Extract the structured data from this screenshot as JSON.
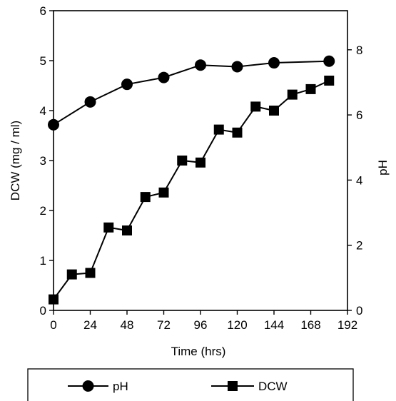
{
  "chart_data": {
    "type": "line",
    "xlabel": "Time (hrs)",
    "ylabel": "DCW (mg / ml)",
    "y2label": "pH",
    "xlim": [
      0,
      192
    ],
    "ylim": [
      0,
      6
    ],
    "y2lim": [
      0,
      9.2
    ],
    "x_ticks": [
      "0",
      "24",
      "48",
      "72",
      "96",
      "120",
      "144",
      "168",
      "192"
    ],
    "y_ticks": [
      "0",
      "1",
      "2",
      "3",
      "4",
      "5",
      "6"
    ],
    "y2_ticks": [
      "0",
      "2",
      "4",
      "6",
      "8"
    ],
    "grid": false,
    "legend_position": "bottom",
    "series": [
      {
        "name": "pH",
        "axis": "right",
        "marker": "circle",
        "color": "#000000",
        "x": [
          0,
          24,
          48,
          72,
          96,
          120,
          144,
          180
        ],
        "y": [
          5.7,
          6.4,
          6.94,
          7.15,
          7.53,
          7.48,
          7.6,
          7.65
        ]
      },
      {
        "name": "DCW",
        "axis": "left",
        "marker": "square",
        "color": "#000000",
        "x": [
          0,
          12,
          24,
          36,
          48,
          60,
          72,
          84,
          96,
          108,
          120,
          132,
          144,
          156,
          168,
          180
        ],
        "y": [
          0.22,
          0.72,
          0.75,
          1.66,
          1.6,
          2.27,
          2.36,
          3.0,
          2.96,
          3.62,
          3.56,
          4.08,
          4.0,
          4.32,
          4.43,
          4.6
        ]
      }
    ]
  }
}
